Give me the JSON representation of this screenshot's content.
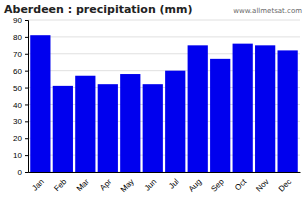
{
  "chart_data": {
    "type": "bar",
    "title": "Aberdeen : precipitation (mm)",
    "categories": [
      "Jan",
      "Feb",
      "Mar",
      "Apr",
      "May",
      "Jun",
      "Jul",
      "Aug",
      "Sep",
      "Oct",
      "Nov",
      "Dec"
    ],
    "values": [
      81,
      51,
      57,
      52,
      58,
      52,
      60,
      75,
      67,
      76,
      75,
      72
    ],
    "color": "#0000EE",
    "ylim": [
      0,
      90
    ],
    "yticks": [
      0,
      10,
      20,
      30,
      40,
      50,
      60,
      70,
      80,
      90
    ],
    "grid": true,
    "annotations": [
      "www.allmetsat.com"
    ]
  }
}
